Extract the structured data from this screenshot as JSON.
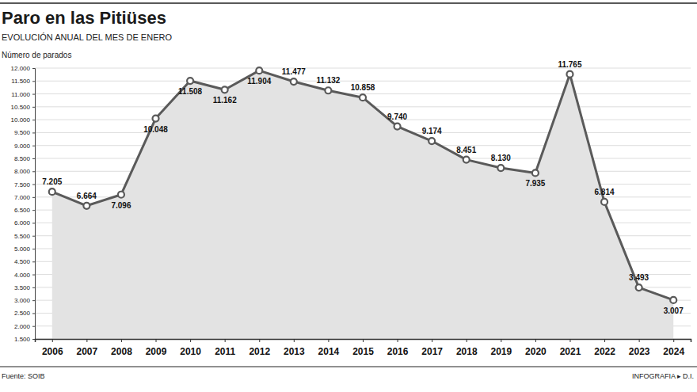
{
  "chart_data": {
    "type": "area",
    "title": "Paro en las Pitiüses",
    "subtitle": "EVOLUCIÓN ANUAL DEL MES DE ENERO",
    "y_label": "Número de parados",
    "source": "Fuente: SOIB",
    "credit": "INFOGRAFIA ▸ D.I.",
    "categories": [
      "2006",
      "2007",
      "2008",
      "2009",
      "2010",
      "2011",
      "2012",
      "2013",
      "2014",
      "2015",
      "2016",
      "2017",
      "2018",
      "2019",
      "2020",
      "2021",
      "2022",
      "2023",
      "2024"
    ],
    "values": [
      7205,
      6664,
      7096,
      10048,
      11508,
      11162,
      11904,
      11477,
      11132,
      10858,
      9740,
      9174,
      8451,
      8130,
      7935,
      11765,
      6814,
      3493,
      3007
    ],
    "value_labels": [
      "7.205",
      "6.664",
      "7.096",
      "10.048",
      "11.508",
      "11.162",
      "11.904",
      "11.477",
      "11.132",
      "10.858",
      "9.740",
      "9.174",
      "8.451",
      "8.130",
      "7.935",
      "11.765",
      "6.814",
      "3.493",
      "3.007"
    ],
    "color": "#5a5a5a",
    "marker": "circle",
    "data_labels": true,
    "grid": true,
    "ylim": [
      1500,
      12000
    ],
    "yticks": [
      {
        "value": 1500,
        "label": "1.500"
      },
      {
        "value": 2000,
        "label": "2.000"
      },
      {
        "value": 2500,
        "label": "2.500"
      },
      {
        "value": 3000,
        "label": "3.000"
      },
      {
        "value": 3500,
        "label": "3.500"
      },
      {
        "value": 4000,
        "label": "4.000"
      },
      {
        "value": 4500,
        "label": "4.500"
      },
      {
        "value": 5000,
        "label": "5.000"
      },
      {
        "value": 5500,
        "label": "5.500"
      },
      {
        "value": 6000,
        "label": "6.000"
      },
      {
        "value": 6500,
        "label": "6.500"
      },
      {
        "value": 7000,
        "label": "7.000"
      },
      {
        "value": 7500,
        "label": "7.500"
      },
      {
        "value": 8000,
        "label": "8.000"
      },
      {
        "value": 8500,
        "label": "8.500"
      },
      {
        "value": 9000,
        "label": "9.000"
      },
      {
        "value": 9500,
        "label": "9.500"
      },
      {
        "value": 10000,
        "label": "10.000"
      },
      {
        "value": 10500,
        "label": "10.500"
      },
      {
        "value": 11000,
        "label": "11.000"
      },
      {
        "value": 11500,
        "label": "11.500"
      },
      {
        "value": 12000,
        "label": "12.000"
      }
    ]
  }
}
